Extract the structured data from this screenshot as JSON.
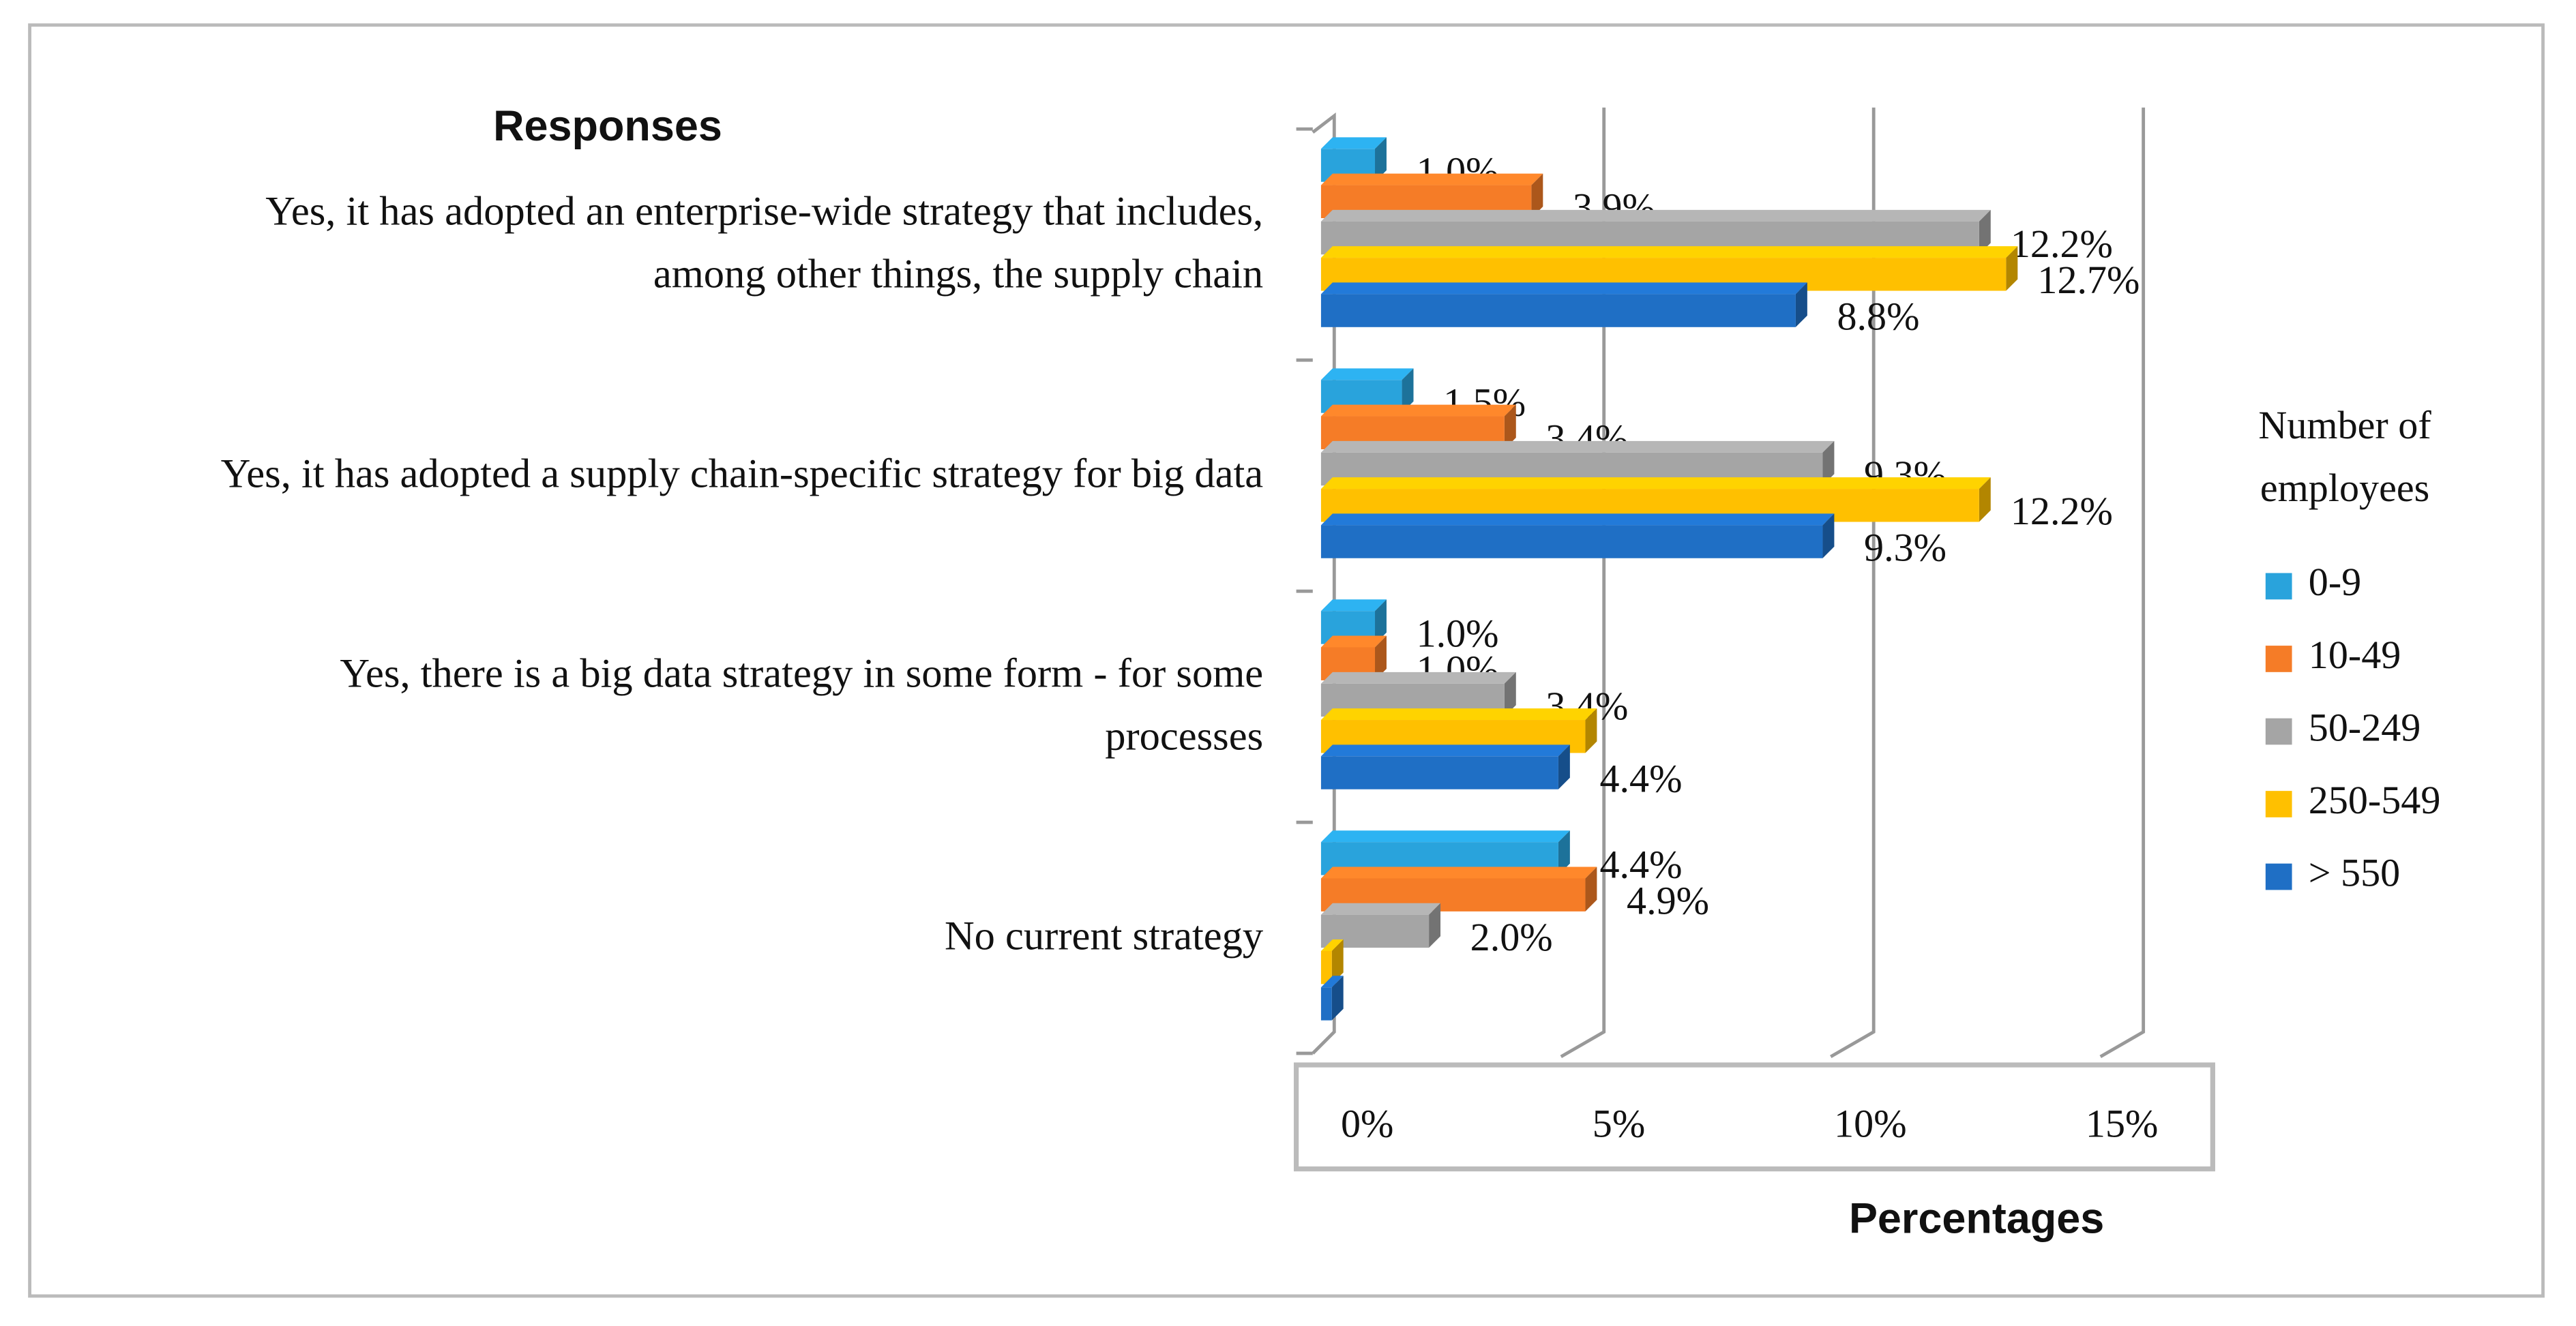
{
  "chart_data": {
    "type": "bar",
    "orientation": "horizontal",
    "3d": true,
    "title": "Responses",
    "xlabel": "Percentages",
    "legend_title": [
      "Number of",
      "employees"
    ],
    "legend": "right",
    "categories": [
      "Yes, it has adopted an enterprise-wide strategy that includes, among other things, the supply chain",
      "Yes, it has adopted a supply chain-specific strategy for big data",
      "Yes, there is a big data strategy in some form - for some processes",
      "No current strategy"
    ],
    "series": [
      {
        "name": "0-9",
        "color": "#29a3dc",
        "values": [
          1.0,
          1.5,
          1.0,
          4.4
        ],
        "value_labels": [
          "1.0%",
          "1.5%",
          "1.0%",
          "4.4%"
        ]
      },
      {
        "name": "10-49",
        "color": "#f57c27",
        "values": [
          3.9,
          3.4,
          1.0,
          4.9
        ],
        "value_labels": [
          "3.9%",
          "3.4%",
          "1.0%",
          "4.9%"
        ]
      },
      {
        "name": "50-249",
        "color": "#a5a5a5",
        "values": [
          12.2,
          9.3,
          3.4,
          2.0
        ],
        "value_labels": [
          "12.2%",
          "9.3%",
          "3.4%",
          "2.0%"
        ]
      },
      {
        "name": "250-549",
        "color": "#ffc000",
        "values": [
          12.7,
          12.2,
          4.9,
          0.2
        ],
        "value_labels": [
          "12.7%",
          "12.2%",
          null,
          null
        ]
      },
      {
        "name": "> 550",
        "color": "#1f6fc5",
        "values": [
          8.8,
          9.3,
          4.4,
          0.2
        ],
        "value_labels": [
          "8.8%",
          "9.3%",
          "4.4%",
          null
        ]
      }
    ],
    "xlim": [
      0,
      15
    ],
    "xticks": [
      {
        "value": 0,
        "label": "0%"
      },
      {
        "value": 5,
        "label": "5%"
      },
      {
        "value": 10,
        "label": "10%"
      },
      {
        "value": 15,
        "label": "15%"
      }
    ],
    "grid": true
  }
}
